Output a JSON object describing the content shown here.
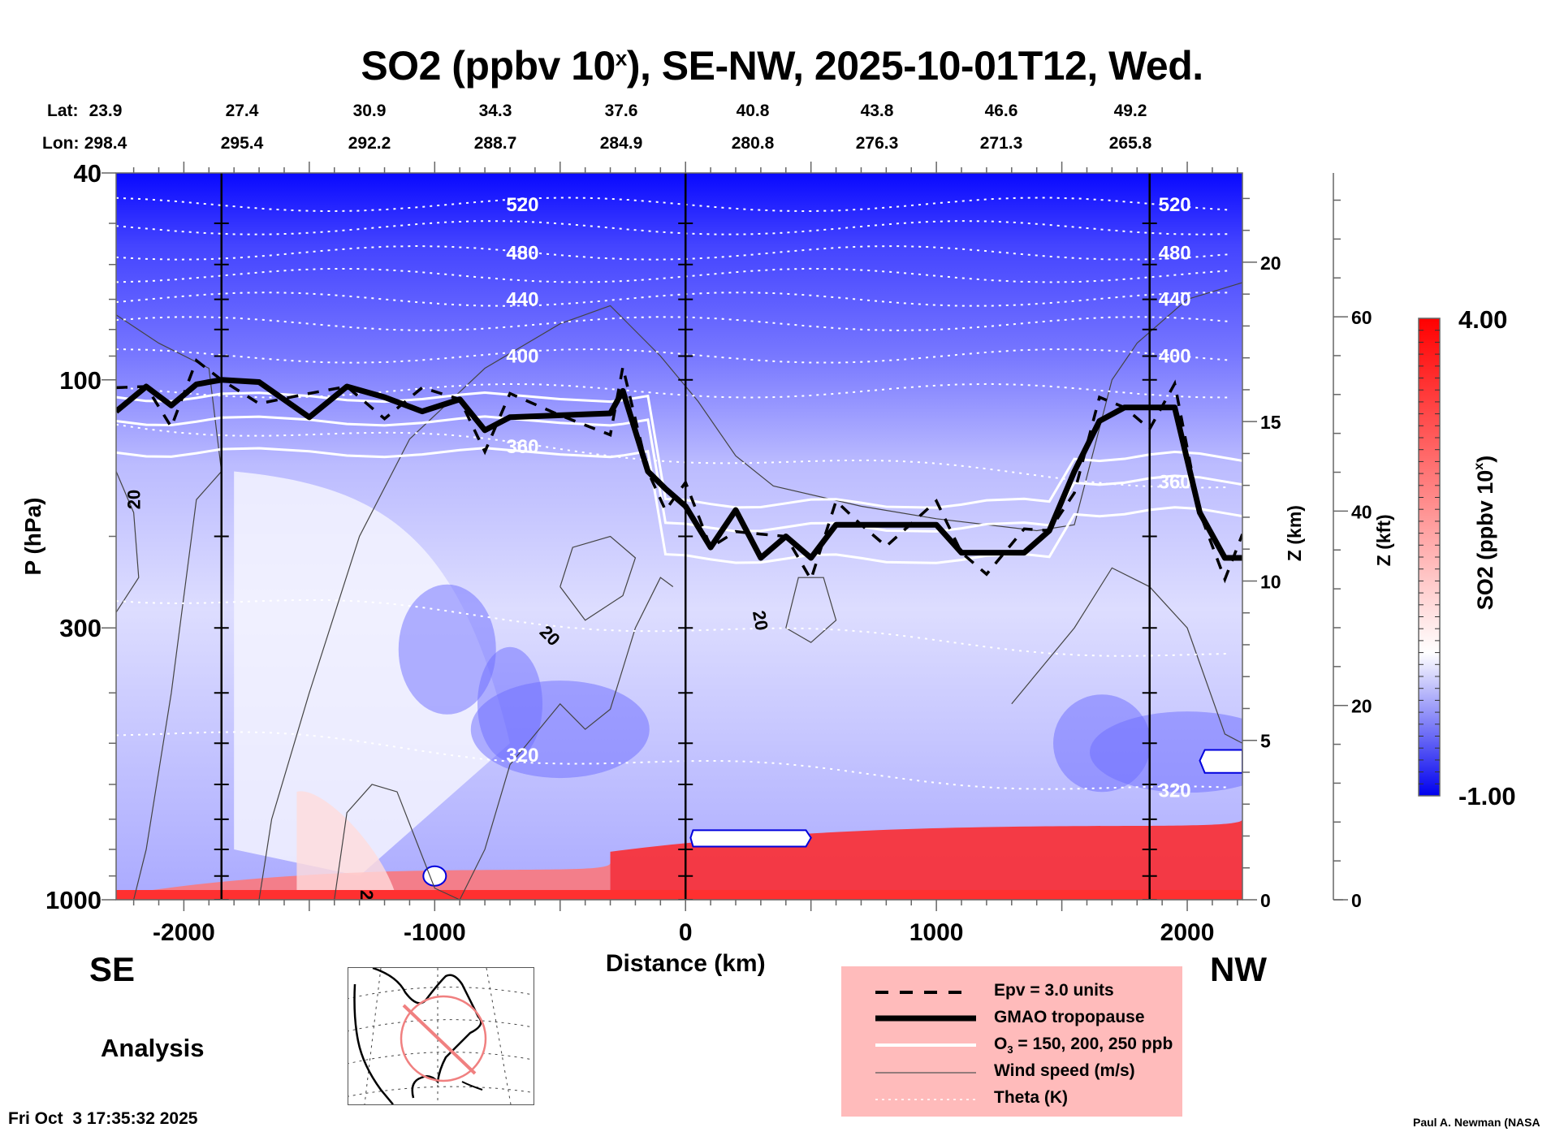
{
  "title": {
    "main": "SO2 (ppbv 10",
    "sup": "x",
    "rest": "), SE-NW, 2025-10-01T12, Wed."
  },
  "latlon": {
    "lat_label": "Lat:",
    "lon_label": "Lon:",
    "lat": [
      "23.9",
      "27.4",
      "30.9",
      "34.3",
      "37.6",
      "40.8",
      "43.8",
      "46.6",
      "49.2"
    ],
    "lon": [
      "298.4",
      "295.4",
      "292.2",
      "288.7",
      "284.9",
      "280.8",
      "276.3",
      "271.3",
      "265.8"
    ]
  },
  "direction": {
    "left": "SE",
    "right": "NW"
  },
  "analysis_label": "Analysis",
  "timestamp": "Fri Oct  3 17:35:32 2025",
  "credit": "Paul A. Newman (NASA",
  "legend": {
    "items": [
      {
        "label": "Epv = 3.0 units",
        "style": "dashed"
      },
      {
        "label": "GMAO tropopause",
        "style": "thick"
      },
      {
        "label_pre": "O",
        "label_sub": "3",
        "label_post": " = 150, 200, 250 ppb",
        "style": "white"
      },
      {
        "label": "Wind speed (m/s)",
        "style": "thin"
      },
      {
        "label": "Theta (K)",
        "style": "dotted"
      }
    ]
  },
  "colors": {
    "colormap_low": "#0000ff",
    "colormap_mid": "#ffffff",
    "colormap_high": "#ff0000",
    "legend_bg": "#ffbbbb",
    "map_ring": "#f08080"
  },
  "chart_data": {
    "type": "heatmap",
    "title": "SO2 (ppbv 10^x), SE-NW, 2025-10-01T12, Wed.",
    "xlabel": "Distance (km)",
    "ylabel": "P (hPa)",
    "y2label": "Z (km)",
    "y3label": "Z (kft)",
    "xlim": [
      -2270,
      2220
    ],
    "ylim": [
      1000,
      40
    ],
    "yscale": "log",
    "x_ticks": [
      -2000,
      -1000,
      0,
      1000,
      2000
    ],
    "x_tick_labels": [
      "-2000",
      "-1000",
      "0",
      "1000",
      "2000"
    ],
    "y_ticks": [
      40,
      100,
      300,
      1000
    ],
    "y_tick_labels": [
      "40",
      "100",
      "300",
      "1000"
    ],
    "zkm_ticks": [
      0,
      5,
      10,
      15,
      20
    ],
    "zkm_tick_labels": [
      "0",
      "5",
      "10",
      "15",
      "20"
    ],
    "zkft_ticks": [
      0,
      20,
      40,
      60
    ],
    "zkft_tick_labels": [
      "0",
      "20",
      "40",
      "60"
    ],
    "colorbar": {
      "label": "SO2 (ppbv 10^x)",
      "min": -1.0,
      "max": 4.0,
      "min_label": "-1.00",
      "max_label": "4.00"
    },
    "vertical_markers_km": [
      -1850,
      0,
      1850
    ],
    "theta_contours": [
      {
        "value": 520,
        "label": "520",
        "p": 46
      },
      {
        "value": 500,
        "label": "",
        "p": 51
      },
      {
        "value": 480,
        "label": "480",
        "p": 57
      },
      {
        "value": 460,
        "label": "",
        "p": 63
      },
      {
        "value": 440,
        "label": "440",
        "p": 70
      },
      {
        "value": 420,
        "label": "",
        "p": 78
      },
      {
        "value": 400,
        "label": "400",
        "p": 90
      },
      {
        "value": 380,
        "label": "",
        "p": 105
      },
      {
        "value": 360,
        "label": "360",
        "p": 140
      },
      {
        "value": 340,
        "label": "",
        "p": 300
      },
      {
        "value": 320,
        "label": "320",
        "p": 550
      }
    ],
    "tropopause": {
      "x": [
        -2270,
        -2150,
        -2050,
        -1950,
        -1850,
        -1700,
        -1500,
        -1350,
        -1200,
        -1050,
        -900,
        -800,
        -700,
        -500,
        -300,
        -250,
        -150,
        -80,
        0,
        100,
        200,
        300,
        400,
        500,
        600,
        700,
        800,
        1000,
        1100,
        1200,
        1350,
        1450,
        1550,
        1650,
        1750,
        1850,
        1950,
        2050,
        2150,
        2220
      ],
      "p": [
        115,
        103,
        112,
        102,
        100,
        101,
        118,
        103,
        108,
        115,
        109,
        125,
        118,
        117,
        116,
        105,
        150,
        162,
        175,
        210,
        178,
        220,
        200,
        220,
        190,
        190,
        190,
        190,
        215,
        215,
        215,
        195,
        150,
        120,
        113,
        113,
        113,
        180,
        220,
        220
      ]
    },
    "sections": [
      {
        "name": "stratosphere",
        "p_range": [
          40,
          110
        ],
        "so2_level": -0.4
      },
      {
        "name": "upper_troposphere",
        "p_range": [
          110,
          600
        ],
        "so2_level": 0.3
      },
      {
        "name": "boundary_layer_se",
        "x_range": [
          -2270,
          -300
        ],
        "p_range": [
          850,
          1000
        ],
        "so2_level": 2.4
      },
      {
        "name": "boundary_layer_nw",
        "x_range": [
          -300,
          2220
        ],
        "p_range": [
          700,
          1000
        ],
        "so2_level": 3.5
      }
    ],
    "wind_speed_contour_label": "20"
  }
}
